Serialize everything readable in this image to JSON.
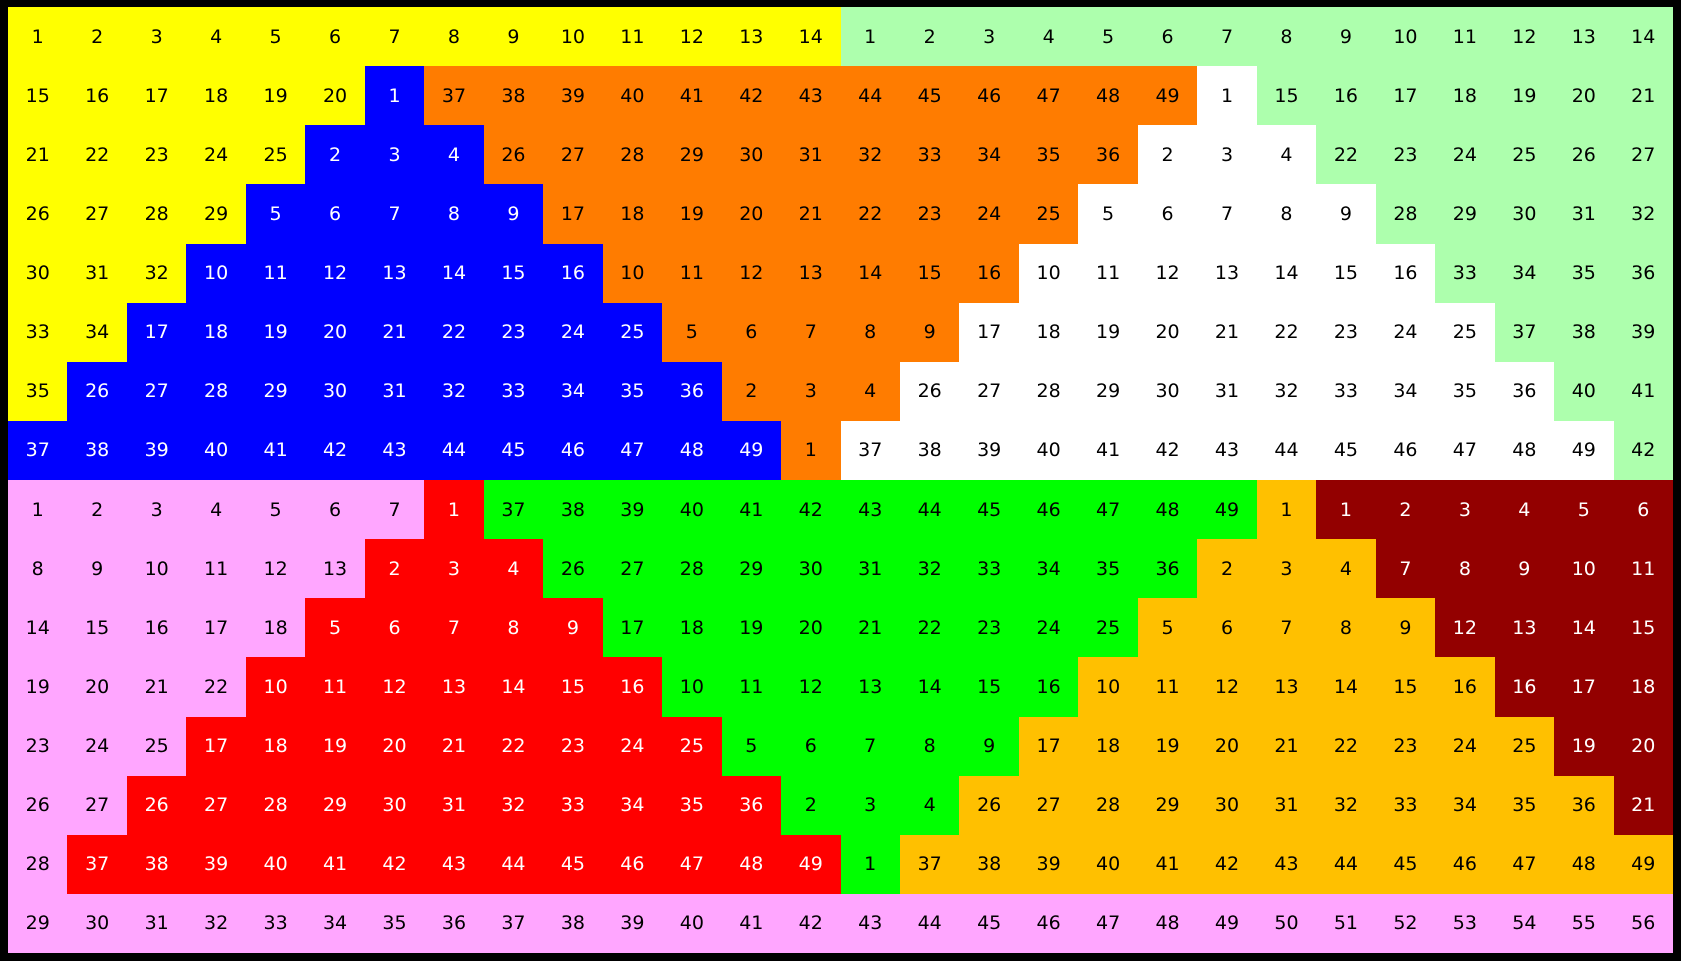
{
  "colors": {
    "yellow": "#ffff00",
    "lightgreen": "#adffad",
    "blue": "#0000ff",
    "orange": "#ff7c00",
    "white": "#ffffff",
    "pink": "#ffa6ff",
    "red": "#ff0000",
    "green": "#00ff00",
    "amber": "#ffc000",
    "darkred": "#930000"
  },
  "white_text_colors": [
    "blue",
    "red",
    "darkred"
  ],
  "rows": [
    [
      [
        "yellow",
        [
          1,
          2,
          3,
          4,
          5,
          6,
          7,
          8,
          9,
          10,
          11,
          12,
          13,
          14
        ]
      ],
      [
        "lightgreen",
        [
          1,
          2,
          3,
          4,
          5,
          6,
          7,
          8,
          9,
          10,
          11,
          12,
          13,
          14
        ]
      ]
    ],
    [
      [
        "yellow",
        [
          15,
          16,
          17,
          18,
          19,
          20
        ]
      ],
      [
        "blue",
        [
          1
        ]
      ],
      [
        "orange",
        [
          37,
          38,
          39,
          40,
          41,
          42,
          43,
          44,
          45,
          46,
          47,
          48,
          49
        ]
      ],
      [
        "white",
        [
          1
        ]
      ],
      [
        "lightgreen",
        [
          15,
          16,
          17,
          18,
          19,
          20,
          21
        ]
      ]
    ],
    [
      [
        "yellow",
        [
          21,
          22,
          23,
          24,
          25
        ]
      ],
      [
        "blue",
        [
          2,
          3,
          4
        ]
      ],
      [
        "orange",
        [
          26,
          27,
          28,
          29,
          30,
          31,
          32,
          33,
          34,
          35,
          36
        ]
      ],
      [
        "white",
        [
          2,
          3,
          4
        ]
      ],
      [
        "lightgreen",
        [
          22,
          23,
          24,
          25,
          26,
          27
        ]
      ]
    ],
    [
      [
        "yellow",
        [
          26,
          27,
          28,
          29
        ]
      ],
      [
        "blue",
        [
          5,
          6,
          7,
          8,
          9
        ]
      ],
      [
        "orange",
        [
          17,
          18,
          19,
          20,
          21,
          22,
          23,
          24,
          25
        ]
      ],
      [
        "white",
        [
          5,
          6,
          7,
          8,
          9
        ]
      ],
      [
        "lightgreen",
        [
          28,
          29,
          30,
          31,
          32
        ]
      ]
    ],
    [
      [
        "yellow",
        [
          30,
          31,
          32
        ]
      ],
      [
        "blue",
        [
          10,
          11,
          12,
          13,
          14,
          15,
          16
        ]
      ],
      [
        "orange",
        [
          10,
          11,
          12,
          13,
          14,
          15,
          16
        ]
      ],
      [
        "white",
        [
          10,
          11,
          12,
          13,
          14,
          15,
          16
        ]
      ],
      [
        "lightgreen",
        [
          33,
          34,
          35,
          36
        ]
      ]
    ],
    [
      [
        "yellow",
        [
          33,
          34
        ]
      ],
      [
        "blue",
        [
          17,
          18,
          19,
          20,
          21,
          22,
          23,
          24,
          25
        ]
      ],
      [
        "orange",
        [
          5,
          6,
          7,
          8,
          9
        ]
      ],
      [
        "white",
        [
          17,
          18,
          19,
          20,
          21,
          22,
          23,
          24,
          25
        ]
      ],
      [
        "lightgreen",
        [
          37,
          38,
          39
        ]
      ]
    ],
    [
      [
        "yellow",
        [
          35
        ]
      ],
      [
        "blue",
        [
          26,
          27,
          28,
          29,
          30,
          31,
          32,
          33,
          34,
          35,
          36
        ]
      ],
      [
        "orange",
        [
          2,
          3,
          4
        ]
      ],
      [
        "white",
        [
          26,
          27,
          28,
          29,
          30,
          31,
          32,
          33,
          34,
          35,
          36
        ]
      ],
      [
        "lightgreen",
        [
          40,
          41
        ]
      ]
    ],
    [
      [
        "blue",
        [
          37,
          38,
          39,
          40,
          41,
          42,
          43,
          44,
          45,
          46,
          47,
          48,
          49
        ]
      ],
      [
        "orange",
        [
          1
        ]
      ],
      [
        "white",
        [
          37,
          38,
          39,
          40,
          41,
          42,
          43,
          44,
          45,
          46,
          47,
          48,
          49
        ]
      ],
      [
        "lightgreen",
        [
          42
        ]
      ]
    ],
    [
      [
        "pink",
        [
          1,
          2,
          3,
          4,
          5,
          6,
          7
        ]
      ],
      [
        "red",
        [
          1
        ]
      ],
      [
        "green",
        [
          37,
          38,
          39,
          40,
          41,
          42,
          43,
          44,
          45,
          46,
          47,
          48,
          49
        ]
      ],
      [
        "amber",
        [
          1
        ]
      ],
      [
        "darkred",
        [
          1,
          2,
          3,
          4,
          5,
          6
        ]
      ]
    ],
    [
      [
        "pink",
        [
          8,
          9,
          10,
          11,
          12,
          13
        ]
      ],
      [
        "red",
        [
          2,
          3,
          4
        ]
      ],
      [
        "green",
        [
          26,
          27,
          28,
          29,
          30,
          31,
          32,
          33,
          34,
          35,
          36
        ]
      ],
      [
        "amber",
        [
          2,
          3,
          4
        ]
      ],
      [
        "darkred",
        [
          7,
          8,
          9,
          10,
          11
        ]
      ]
    ],
    [
      [
        "pink",
        [
          14,
          15,
          16,
          17,
          18
        ]
      ],
      [
        "red",
        [
          5,
          6,
          7,
          8,
          9
        ]
      ],
      [
        "green",
        [
          17,
          18,
          19,
          20,
          21,
          22,
          23,
          24,
          25
        ]
      ],
      [
        "amber",
        [
          5,
          6,
          7,
          8,
          9
        ]
      ],
      [
        "darkred",
        [
          12,
          13,
          14,
          15
        ]
      ]
    ],
    [
      [
        "pink",
        [
          19,
          20,
          21,
          22
        ]
      ],
      [
        "red",
        [
          10,
          11,
          12,
          13,
          14,
          15,
          16
        ]
      ],
      [
        "green",
        [
          10,
          11,
          12,
          13,
          14,
          15,
          16
        ]
      ],
      [
        "amber",
        [
          10,
          11,
          12,
          13,
          14,
          15,
          16
        ]
      ],
      [
        "darkred",
        [
          16,
          17,
          18
        ]
      ]
    ],
    [
      [
        "pink",
        [
          23,
          24,
          25
        ]
      ],
      [
        "red",
        [
          17,
          18,
          19,
          20,
          21,
          22,
          23,
          24,
          25
        ]
      ],
      [
        "green",
        [
          5,
          6,
          7,
          8,
          9
        ]
      ],
      [
        "amber",
        [
          17,
          18,
          19,
          20,
          21,
          22,
          23,
          24,
          25
        ]
      ],
      [
        "darkred",
        [
          19,
          20
        ]
      ]
    ],
    [
      [
        "pink",
        [
          26,
          27
        ]
      ],
      [
        "red",
        [
          26,
          27,
          28,
          29,
          30,
          31,
          32,
          33,
          34,
          35,
          36
        ]
      ],
      [
        "green",
        [
          2,
          3,
          4
        ]
      ],
      [
        "amber",
        [
          26,
          27,
          28,
          29,
          30,
          31,
          32,
          33,
          34,
          35,
          36
        ]
      ],
      [
        "darkred",
        [
          21
        ]
      ]
    ],
    [
      [
        "pink",
        [
          28
        ]
      ],
      [
        "red",
        [
          37,
          38,
          39,
          40,
          41,
          42,
          43,
          44,
          45,
          46,
          47,
          48,
          49
        ]
      ],
      [
        "green",
        [
          1
        ]
      ],
      [
        "amber",
        [
          37,
          38,
          39,
          40,
          41,
          42,
          43,
          44,
          45,
          46,
          47,
          48,
          49
        ]
      ]
    ],
    [
      [
        "pink",
        [
          29,
          30,
          31,
          32,
          33,
          34,
          35,
          36,
          37,
          38,
          39,
          40,
          41,
          42,
          43,
          44,
          45,
          46,
          47,
          48,
          49,
          50,
          51,
          52,
          53,
          54,
          55,
          56
        ]
      ]
    ]
  ]
}
